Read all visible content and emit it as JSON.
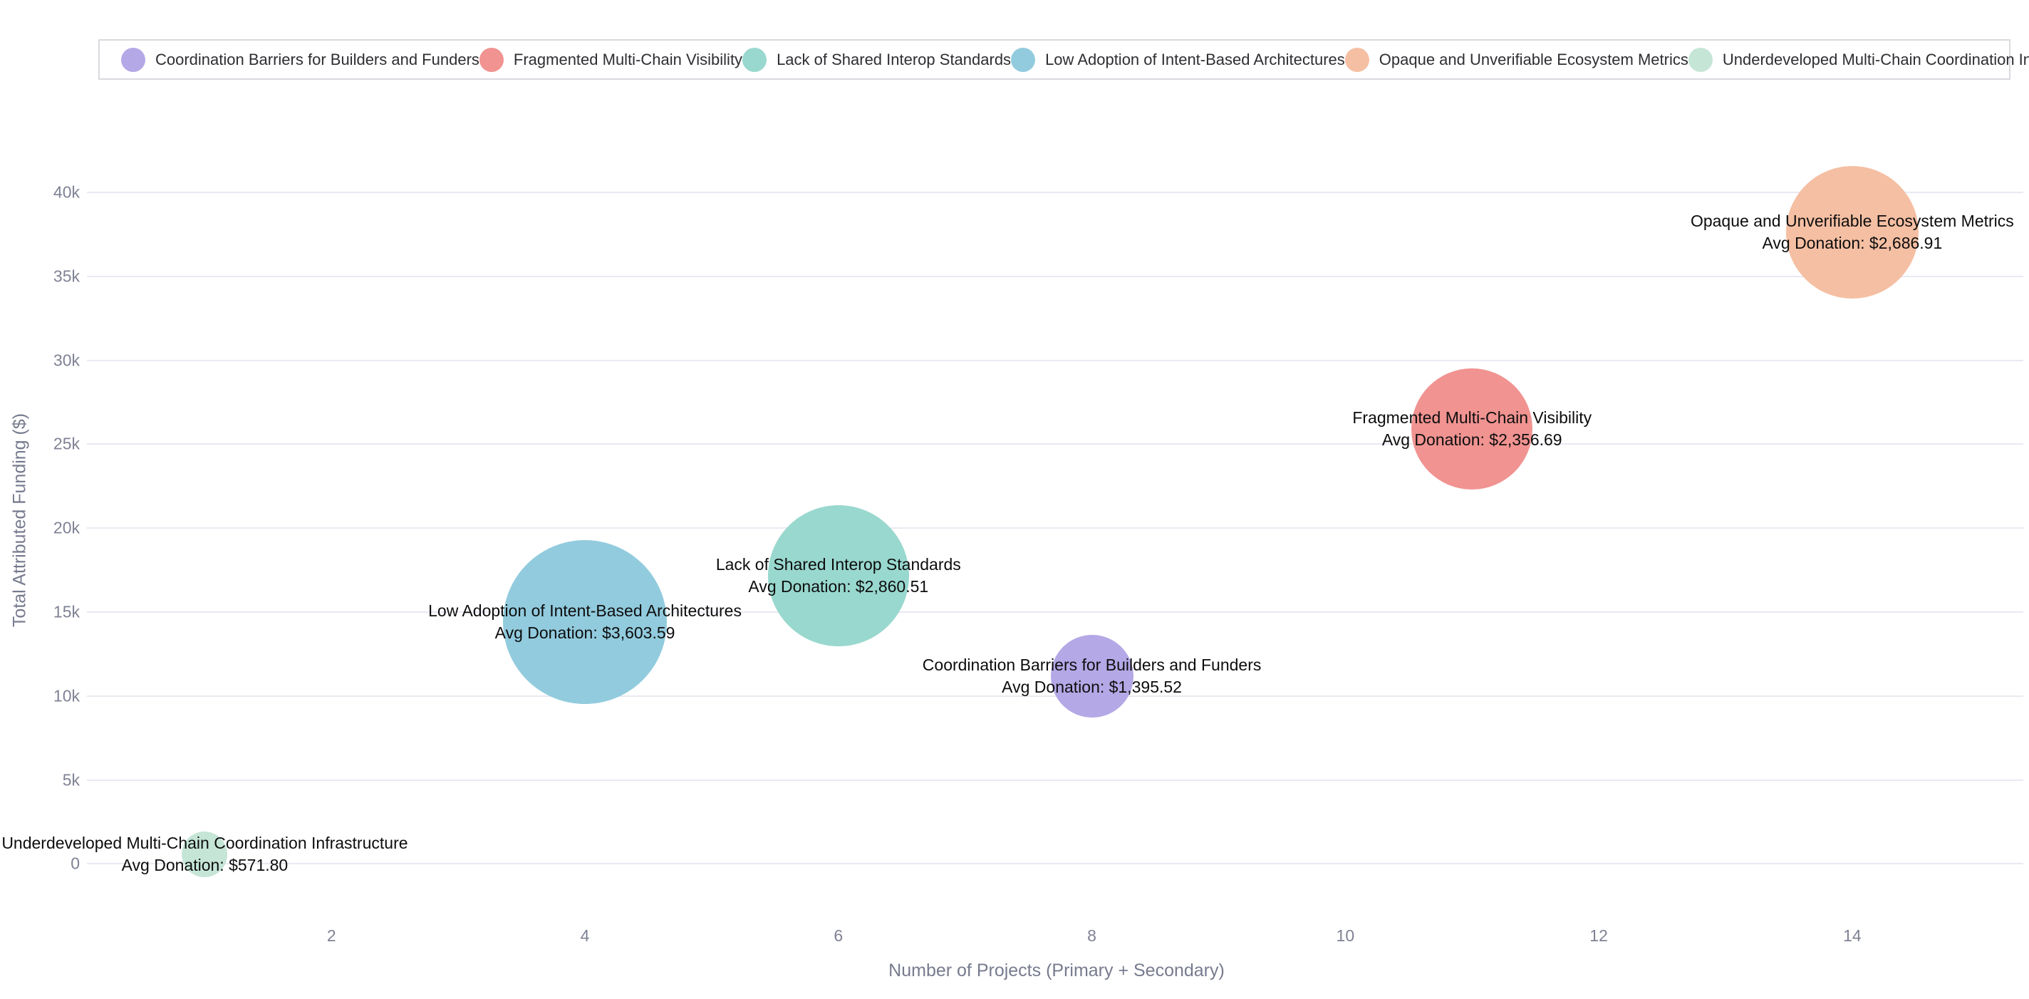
{
  "page": {
    "background": "#ffffff"
  },
  "legend": {
    "items": [
      {
        "label": "Coordination Barriers for Builders and Funders",
        "color": "#b5a8e6"
      },
      {
        "label": "Fragmented Multi-Chain Visibility",
        "color": "#f09391"
      },
      {
        "label": "Lack of Shared Interop Standards",
        "color": "#99d8ce"
      },
      {
        "label": "Low Adoption of Intent-Based Architectures",
        "color": "#92cbde"
      },
      {
        "label": "Opaque and Unverifiable Ecosystem Metrics",
        "color": "#f5bfa3"
      },
      {
        "label": "Underdeveloped Multi-Chain Coordination Infrastructure",
        "color": "#c5e5d7"
      }
    ]
  },
  "chart_data": {
    "type": "scatter",
    "subtype": "bubble",
    "title": "",
    "xlabel": "Number of Projects (Primary + Secondary)",
    "ylabel": "Total Attributed Funding ($)",
    "grid": true,
    "legend_position": "top",
    "xlim": [
      0.07,
      15.35
    ],
    "ylim": [
      -3300,
      45100
    ],
    "x_ticks": [
      {
        "value": 2,
        "label": "2"
      },
      {
        "value": 4,
        "label": "4"
      },
      {
        "value": 6,
        "label": "6"
      },
      {
        "value": 8,
        "label": "8"
      },
      {
        "value": 10,
        "label": "10"
      },
      {
        "value": 12,
        "label": "12"
      },
      {
        "value": 14,
        "label": "14"
      }
    ],
    "y_ticks": [
      {
        "value": 0,
        "label": "0"
      },
      {
        "value": 5000,
        "label": "5k"
      },
      {
        "value": 10000,
        "label": "10k"
      },
      {
        "value": 15000,
        "label": "15k"
      },
      {
        "value": 20000,
        "label": "20k"
      },
      {
        "value": 25000,
        "label": "25k"
      },
      {
        "value": 30000,
        "label": "30k"
      },
      {
        "value": 35000,
        "label": "35k"
      },
      {
        "value": 40000,
        "label": "40k"
      }
    ],
    "series": [
      {
        "name": "Underdeveloped Multi-Chain Coordination Infrastructure",
        "x": 1,
        "y": 571.8,
        "avg_donation": 571.8,
        "label_line1": "Underdeveloped Multi-Chain Coordination Infrastructure",
        "label_line2": "Avg Donation: $571.80",
        "color": "#c5e5d7",
        "radius_px": 32
      },
      {
        "name": "Low Adoption of Intent-Based Architectures",
        "x": 4,
        "y": 14414.36,
        "avg_donation": 3603.59,
        "label_line1": "Low Adoption of Intent-Based Architectures",
        "label_line2": "Avg Donation: $3,603.59",
        "color": "#92cbde",
        "radius_px": 115
      },
      {
        "name": "Lack of Shared Interop Standards",
        "x": 6,
        "y": 17163.06,
        "avg_donation": 2860.51,
        "label_line1": "Lack of Shared Interop Standards",
        "label_line2": "Avg Donation: $2,860.51",
        "color": "#99d8ce",
        "radius_px": 99
      },
      {
        "name": "Coordination Barriers for Builders and Funders",
        "x": 8,
        "y": 11164.16,
        "avg_donation": 1395.52,
        "label_line1": "Coordination Barriers for Builders and Funders",
        "label_line2": "Avg Donation: $1,395.52",
        "color": "#b5a8e6",
        "radius_px": 58
      },
      {
        "name": "Fragmented Multi-Chain Visibility",
        "x": 11,
        "y": 25923.59,
        "avg_donation": 2356.69,
        "label_line1": "Fragmented Multi-Chain Visibility",
        "label_line2": "Avg Donation: $2,356.69",
        "color": "#f09391",
        "radius_px": 85
      },
      {
        "name": "Opaque and Unverifiable Ecosystem Metrics",
        "x": 14,
        "y": 37616.74,
        "avg_donation": 2686.91,
        "label_line1": "Opaque and Unverifiable Ecosystem Metrics",
        "label_line2": "Avg Donation: $2,686.91",
        "color": "#f5bfa3",
        "radius_px": 93
      }
    ]
  }
}
